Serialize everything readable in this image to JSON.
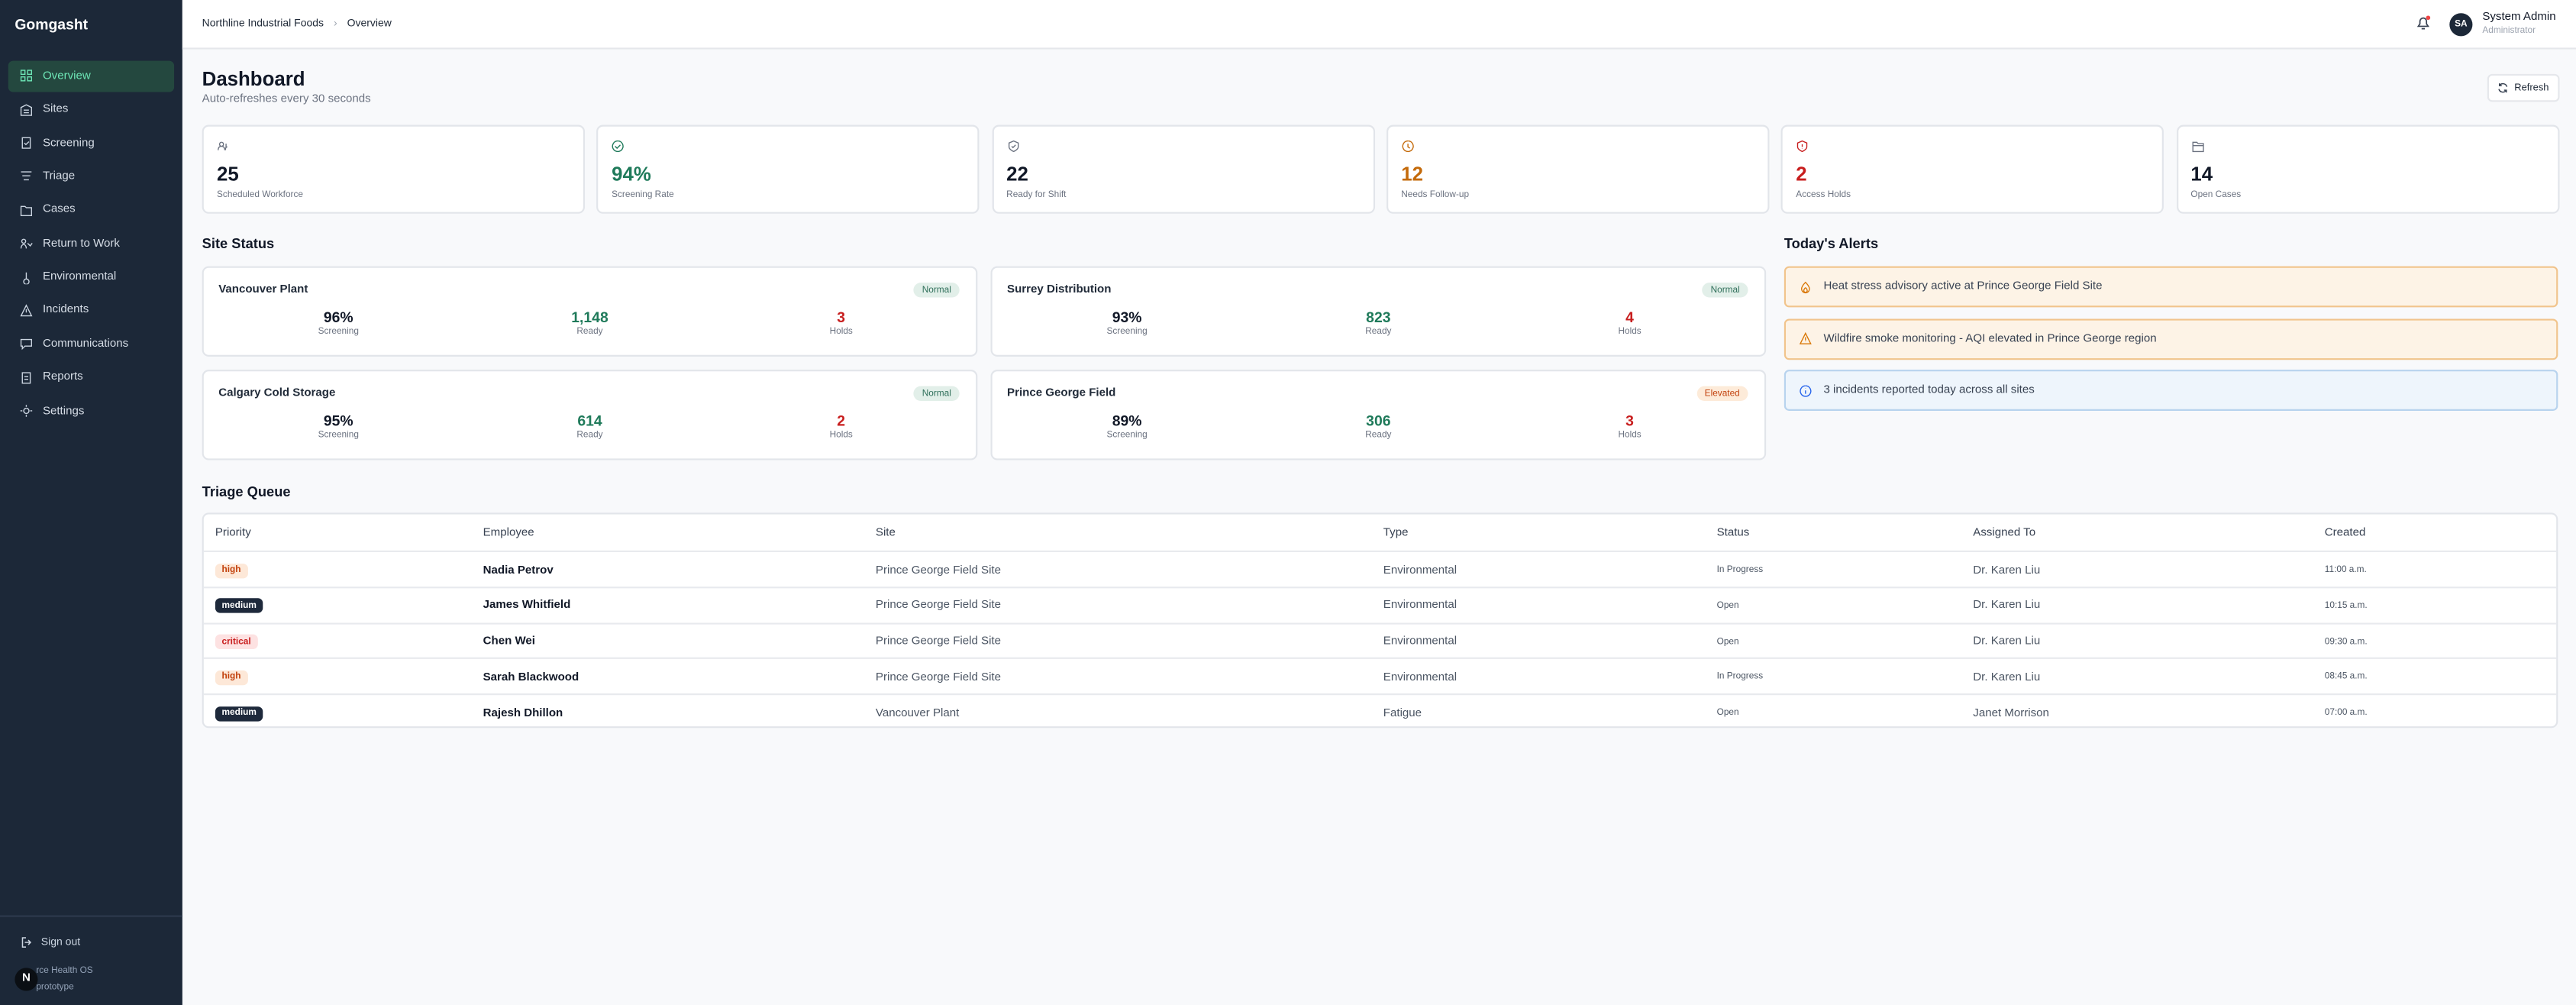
{
  "brand": "Gomgasht",
  "nav": [
    "Overview",
    "Sites",
    "Screening",
    "Triage",
    "Cases",
    "Return to Work",
    "Environmental",
    "Incidents",
    "Communications",
    "Reports",
    "Settings"
  ],
  "sidebar_footer": {
    "sign_out": "Sign out",
    "avatar": "N",
    "line1": "rce Health OS",
    "line2": "prototype"
  },
  "breadcrumb": [
    "Northline Industrial Foods",
    "Overview"
  ],
  "user": {
    "initials": "SA",
    "name": "System Admin",
    "role": "Administrator"
  },
  "header": {
    "title": "Dashboard",
    "subtitle": "Auto-refreshes every 30 seconds",
    "refresh": "Refresh"
  },
  "stats": [
    {
      "value": "25",
      "label": "Scheduled Workforce"
    },
    {
      "value": "94%",
      "label": "Screening Rate"
    },
    {
      "value": "22",
      "label": "Ready for Shift"
    },
    {
      "value": "12",
      "label": "Needs Follow-up"
    },
    {
      "value": "2",
      "label": "Access Holds"
    },
    {
      "value": "14",
      "label": "Open Cases"
    }
  ],
  "site_status": {
    "title": "Site Status",
    "metric_labels": [
      "Screening",
      "Ready",
      "Holds"
    ],
    "sites": [
      {
        "name": "Vancouver Plant",
        "status": "Normal",
        "screening": "96%",
        "ready": "1,148",
        "holds": "3"
      },
      {
        "name": "Surrey Distribution",
        "status": "Normal",
        "screening": "93%",
        "ready": "823",
        "holds": "4"
      },
      {
        "name": "Calgary Cold Storage",
        "status": "Normal",
        "screening": "95%",
        "ready": "614",
        "holds": "2"
      },
      {
        "name": "Prince George Field",
        "status": "Elevated",
        "screening": "89%",
        "ready": "306",
        "holds": "3"
      }
    ]
  },
  "alerts": {
    "title": "Today's Alerts",
    "items": [
      "Heat stress advisory active at Prince George Field Site",
      "Wildfire smoke monitoring - AQI elevated in Prince George region",
      "3 incidents reported today across all sites"
    ]
  },
  "triage": {
    "title": "Triage Queue",
    "columns": [
      "Priority",
      "Employee",
      "Site",
      "Type",
      "Status",
      "Assigned To",
      "Created"
    ],
    "rows": [
      [
        "high",
        "Nadia Petrov",
        "Prince George Field Site",
        "Environmental",
        "In Progress",
        "Dr. Karen Liu",
        "11:00 a.m."
      ],
      [
        "medium",
        "James Whitfield",
        "Prince George Field Site",
        "Environmental",
        "Open",
        "Dr. Karen Liu",
        "10:15 a.m."
      ],
      [
        "critical",
        "Chen Wei",
        "Prince George Field Site",
        "Environmental",
        "Open",
        "Dr. Karen Liu",
        "09:30 a.m."
      ],
      [
        "high",
        "Sarah Blackwood",
        "Prince George Field Site",
        "Environmental",
        "In Progress",
        "Dr. Karen Liu",
        "08:45 a.m."
      ],
      [
        "medium",
        "Rajesh Dhillon",
        "Vancouver Plant",
        "Fatigue",
        "Open",
        "Janet Morrison",
        "07:00 a.m."
      ]
    ]
  }
}
